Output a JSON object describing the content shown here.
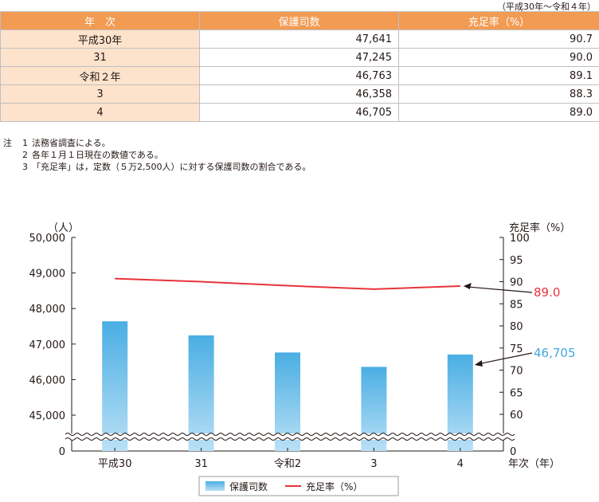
{
  "table": {
    "period_note": "（平成30年～令和４年）",
    "headers": [
      "年　次",
      "保護司数",
      "充足率（%）"
    ],
    "rows": [
      {
        "year": "平成30年",
        "count": "47,641",
        "rate": "90.7"
      },
      {
        "year": "31",
        "count": "47,245",
        "rate": "90.0"
      },
      {
        "year": "令和２年",
        "count": "46,763",
        "rate": "89.1"
      },
      {
        "year": "3",
        "count": "46,358",
        "rate": "88.3"
      },
      {
        "year": "4",
        "count": "46,705",
        "rate": "89.0"
      }
    ]
  },
  "notes": {
    "lead": "注",
    "items": [
      {
        "no": "1",
        "text": "法務省調査による。"
      },
      {
        "no": "2",
        "text": "各年１月１日現在の数値である。"
      },
      {
        "no": "3",
        "text": "「充足率」は，定数（５万2,500人）に対する保護司数の割合である。"
      }
    ]
  },
  "chart_data": {
    "type": "bar",
    "categories": [
      "平成30",
      "31",
      "令和2",
      "3",
      "4"
    ],
    "xlabel": "年次（年）",
    "ylabel_left": "（人）",
    "ylabel_right": "充足率（%）",
    "y_left_ticks": [
      "50,000",
      "49,000",
      "48,000",
      "47,000",
      "46,000",
      "45,000",
      "0"
    ],
    "y_left_range": [
      44500,
      50000
    ],
    "y_left_broken": true,
    "y_right_ticks": [
      "100",
      "95",
      "90",
      "85",
      "80",
      "75",
      "70",
      "65",
      "60",
      "0"
    ],
    "y_right_range": [
      55,
      100
    ],
    "y_right_broken": true,
    "series": [
      {
        "name": "保護司数",
        "type": "bar",
        "axis": "left",
        "values": [
          47641,
          47245,
          46763,
          46358,
          46705
        ],
        "color": "#4aaee3"
      },
      {
        "name": "充足率（%）",
        "type": "line",
        "axis": "right",
        "values": [
          90.7,
          90.0,
          89.1,
          88.3,
          89.0
        ],
        "color": "#e8333c"
      }
    ],
    "annotations": [
      {
        "text": "89.0",
        "color": "#e8333c"
      },
      {
        "text": "46,705",
        "color": "#3fa9e0"
      }
    ],
    "legend_position": "bottom"
  }
}
